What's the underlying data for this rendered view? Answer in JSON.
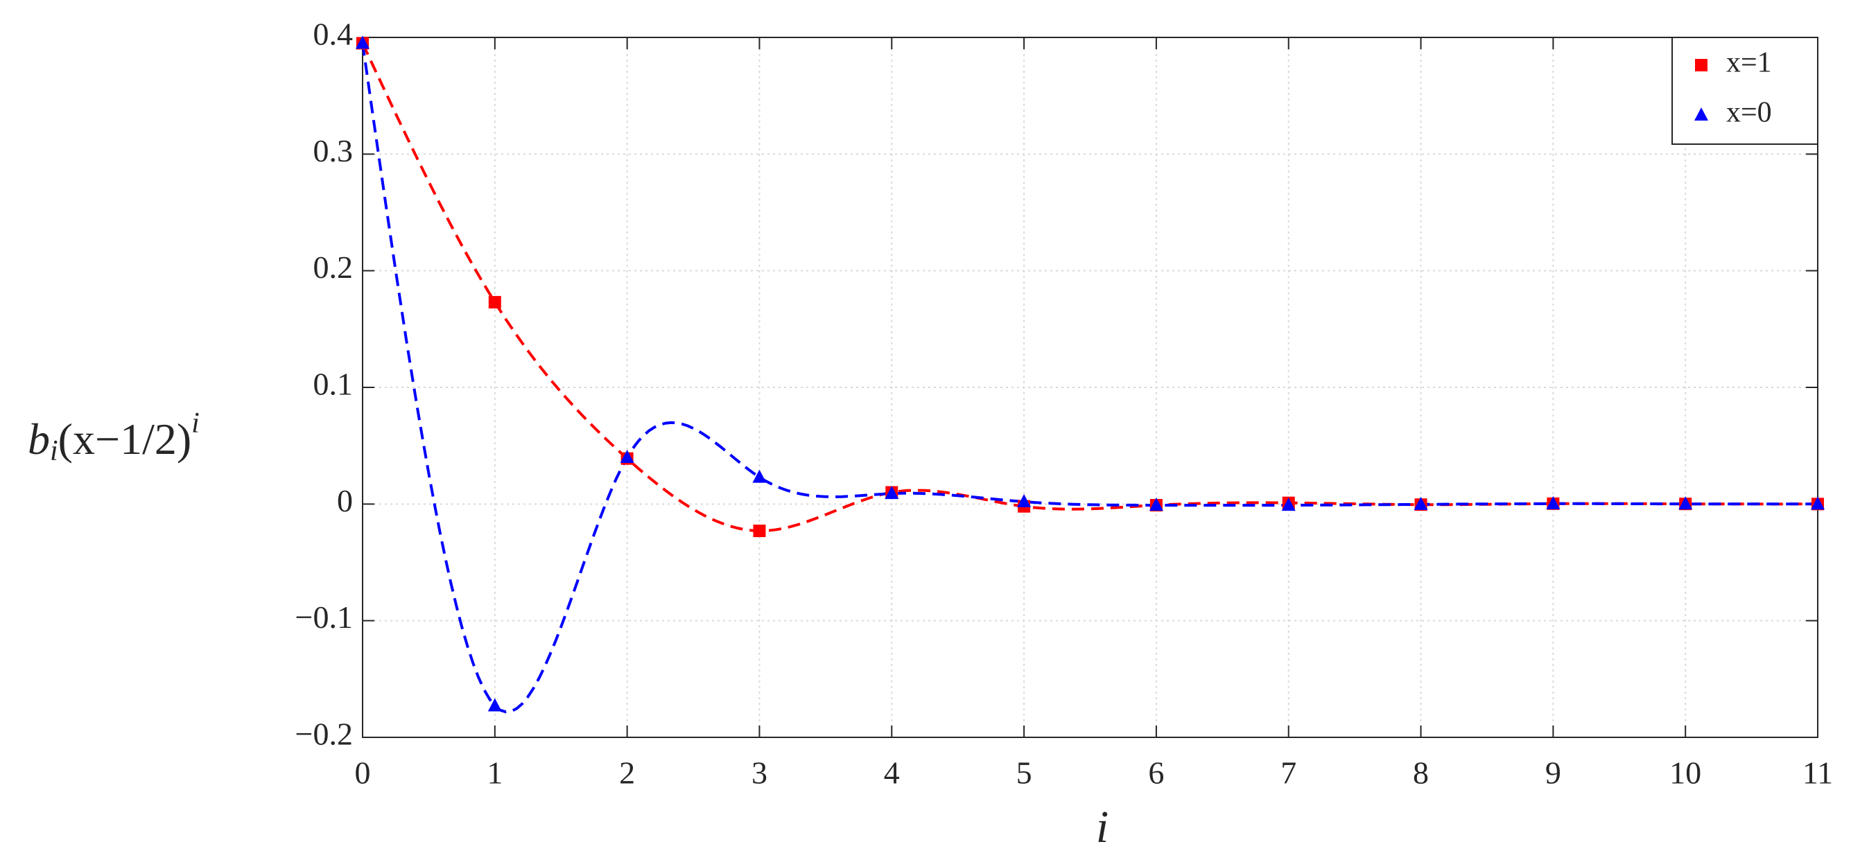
{
  "chart_data": {
    "type": "line",
    "x_label": "i",
    "y_label": {
      "base": "b",
      "sub": "i",
      "body": "(x−1/2)",
      "sup": "i"
    },
    "x": [
      0,
      1,
      2,
      3,
      4,
      5,
      6,
      7,
      8,
      9,
      10,
      11
    ],
    "series": [
      {
        "name": "x=1",
        "color": "#ff0000",
        "marker": "square",
        "values": [
          0.395,
          0.173,
          0.039,
          -0.023,
          0.01,
          -0.002,
          -0.001,
          0.001,
          -0.0005,
          0.0003,
          0.0001,
          0.0
        ]
      },
      {
        "name": "x=0",
        "color": "#0000ff",
        "marker": "triangle",
        "values": [
          0.395,
          -0.173,
          0.04,
          0.023,
          0.009,
          0.002,
          -0.001,
          -0.001,
          -0.0003,
          0.0003,
          0.0001,
          0.0
        ]
      }
    ],
    "xlim": [
      0,
      11
    ],
    "xticks": [
      0,
      1,
      2,
      3,
      4,
      5,
      6,
      7,
      8,
      9,
      10,
      11
    ],
    "ylim": [
      -0.2,
      0.4
    ],
    "yticks": [
      {
        "value": -0.2,
        "label": "−0.2"
      },
      {
        "value": -0.1,
        "label": "−0.1"
      },
      0,
      0.1,
      0.2,
      0.3,
      0.4
    ],
    "grid": true,
    "legend": "top-right"
  }
}
